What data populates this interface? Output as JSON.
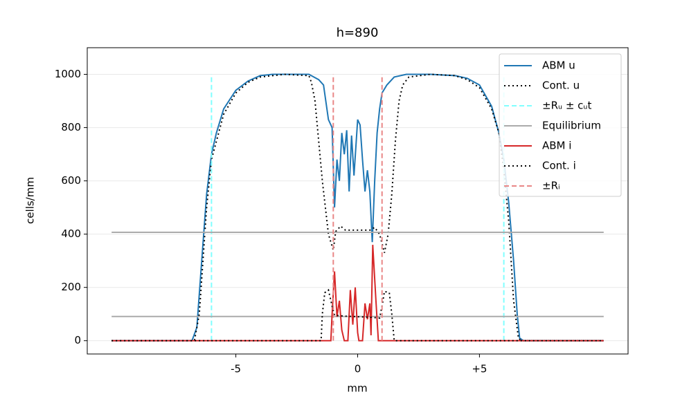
{
  "chart_data": {
    "type": "line",
    "title": "h=890",
    "x_label": "mm",
    "y_label": "cells/mm",
    "xlim": [
      -11.1,
      11.1
    ],
    "ylim": [
      -50,
      1100
    ],
    "xticks": [
      -5,
      0,
      {
        "value": 5,
        "label": "+5"
      }
    ],
    "yticks": [
      0,
      200,
      400,
      600,
      800,
      1000
    ],
    "grid": "y",
    "legend": "upper right",
    "series": [
      {
        "name": "ABM u",
        "color": "#1f77b4",
        "linestyle": "solid",
        "x": [
          -10.1,
          -6.8,
          -6.6,
          -6.4,
          -6.2,
          -6.0,
          -5.8,
          -5.5,
          -5.0,
          -4.5,
          -4.0,
          -3.5,
          -3.0,
          -2.0,
          -1.8,
          -1.6,
          -1.4,
          -1.2,
          -1.05,
          -0.95,
          -0.85,
          -0.75,
          -0.65,
          -0.55,
          -0.45,
          -0.35,
          -0.25,
          -0.15,
          0.0,
          0.1,
          0.2,
          0.3,
          0.4,
          0.5,
          0.6,
          0.7,
          0.8,
          0.9,
          1.0,
          1.2,
          1.5,
          2.0,
          3.0,
          4.0,
          4.5,
          5.0,
          5.5,
          5.8,
          6.0,
          6.2,
          6.4,
          6.55,
          6.65,
          6.8,
          10.1
        ],
        "values": [
          0,
          0,
          50,
          300,
          550,
          700,
          780,
          870,
          940,
          975,
          995,
          1000,
          1000,
          1000,
          990,
          980,
          960,
          830,
          800,
          500,
          680,
          600,
          780,
          700,
          790,
          560,
          770,
          620,
          830,
          810,
          680,
          560,
          640,
          560,
          370,
          600,
          780,
          870,
          930,
          960,
          990,
          1000,
          1000,
          995,
          985,
          960,
          880,
          780,
          680,
          520,
          300,
          100,
          10,
          0,
          0
        ]
      },
      {
        "name": "Cont. u",
        "color": "#000000",
        "linestyle": "dotted",
        "x": [
          -10.1,
          -6.7,
          -6.5,
          -6.2,
          -6.0,
          -5.5,
          -5.0,
          -4.5,
          -4.0,
          -3.0,
          -2.0,
          -1.9,
          -1.75,
          -1.6,
          -1.45,
          -1.35,
          -1.2,
          -1.0,
          -0.9,
          -0.7,
          -0.5,
          0.0,
          0.5,
          0.7,
          0.9,
          1.1,
          1.25,
          1.4,
          1.55,
          1.7,
          1.85,
          2.1,
          3.0,
          4.0,
          4.5,
          5.0,
          5.5,
          5.8,
          6.0,
          6.2,
          6.4,
          6.6,
          6.7,
          10.1
        ],
        "values": [
          0,
          0,
          100,
          500,
          680,
          850,
          930,
          970,
          990,
          1000,
          995,
          970,
          900,
          750,
          600,
          520,
          400,
          340,
          410,
          430,
          415,
          415,
          415,
          425,
          400,
          330,
          400,
          550,
          750,
          900,
          960,
          990,
          1000,
          995,
          980,
          950,
          870,
          780,
          640,
          450,
          150,
          10,
          0,
          0
        ]
      },
      {
        "name": "±Rᵤ ± cᵤt",
        "color": "#80ffff",
        "linestyle": "dashed",
        "x": [
          -6,
          -6,
          null,
          6,
          6
        ],
        "values": [
          0,
          1000,
          null,
          0,
          1000
        ]
      },
      {
        "name": "Equilibrium",
        "color": "#aaaaaa",
        "linestyle": "solid",
        "x": [
          -10.1,
          10.1,
          null,
          -10.1,
          10.1
        ],
        "values": [
          407,
          407,
          null,
          91,
          91
        ]
      },
      {
        "name": "ABM i",
        "color": "#d62728",
        "linestyle": "solid",
        "x": [
          -10.1,
          -1.1,
          -1.05,
          -0.95,
          -0.85,
          -0.75,
          -0.65,
          -0.55,
          -0.4,
          -0.3,
          -0.2,
          -0.1,
          0.0,
          0.05,
          0.2,
          0.3,
          0.4,
          0.5,
          0.55,
          0.62,
          0.75,
          0.85,
          10.1
        ],
        "values": [
          0,
          0,
          100,
          260,
          90,
          150,
          40,
          0,
          0,
          190,
          60,
          200,
          30,
          0,
          0,
          140,
          80,
          140,
          20,
          360,
          150,
          0,
          0
        ]
      },
      {
        "name": "Cont. i",
        "color": "#000000",
        "linestyle": "dotted",
        "x": [
          -10.1,
          -1.5,
          -1.45,
          -1.35,
          -1.2,
          -1.05,
          -0.95,
          -0.5,
          0.0,
          0.5,
          0.9,
          1.0,
          1.1,
          1.3,
          1.4,
          1.5,
          10.1
        ],
        "values": [
          0,
          0,
          100,
          180,
          190,
          130,
          95,
          92,
          90,
          88,
          85,
          130,
          185,
          180,
          100,
          0,
          0
        ]
      },
      {
        "name": "±Rᵢ",
        "color": "#e98686",
        "linestyle": "dashed",
        "x": [
          -1,
          -1,
          null,
          1,
          1
        ],
        "values": [
          0,
          1000,
          null,
          0,
          1000
        ]
      }
    ]
  }
}
